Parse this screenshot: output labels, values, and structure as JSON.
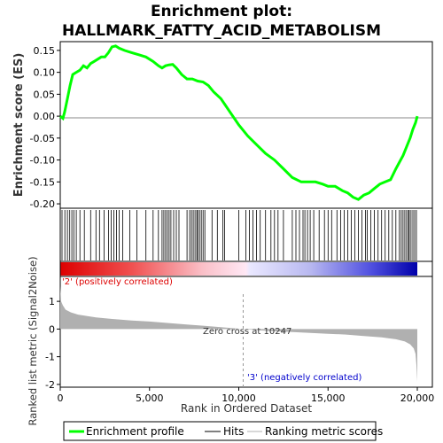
{
  "title_line1": "Enrichment plot:",
  "title_line2": "HALLMARK_FATTY_ACID_METABOLISM",
  "colors": {
    "es_curve": "#00ff00",
    "hits": "#000000",
    "metric_fill": "#b0b0b0",
    "pos_label": "#dd0000",
    "neg_label": "#0000cc",
    "zero_line": "#888888"
  },
  "chart_data": [
    {
      "type": "line",
      "name": "es-panel",
      "ylabel": "Enrichment score (ES)",
      "xlim": [
        0,
        20000
      ],
      "ylim": [
        -0.21,
        0.17
      ],
      "yticks": [
        0.15,
        0.1,
        0.05,
        0.0,
        -0.05,
        -0.1,
        -0.15,
        -0.2
      ],
      "ytick_labels": [
        "0.15",
        "0.10",
        "0.05",
        "0.00",
        "-0.05",
        "-0.10",
        "-0.15",
        "-0.20"
      ],
      "series": [
        {
          "name": "Enrichment profile",
          "x": [
            0,
            150,
            250,
            400,
            550,
            700,
            900,
            1100,
            1300,
            1500,
            1700,
            1900,
            2100,
            2300,
            2500,
            2700,
            2900,
            3100,
            3300,
            3600,
            4000,
            4400,
            4800,
            5200,
            5500,
            5700,
            5900,
            6100,
            6300,
            6500,
            6800,
            7100,
            7400,
            7700,
            8000,
            8300,
            8600,
            9000,
            9500,
            10000,
            10500,
            11000,
            11500,
            12000,
            12500,
            13000,
            13500,
            14000,
            14300,
            14700,
            15000,
            15400,
            15800,
            16100,
            16400,
            16700,
            17000,
            17300,
            17600,
            17900,
            18200,
            18500,
            18800,
            19000,
            19200,
            19400,
            19600,
            19750,
            19900,
            20000
          ],
          "y": [
            0.0,
            -0.005,
            0.01,
            0.04,
            0.07,
            0.095,
            0.1,
            0.105,
            0.115,
            0.11,
            0.12,
            0.125,
            0.13,
            0.135,
            0.135,
            0.145,
            0.158,
            0.16,
            0.155,
            0.15,
            0.145,
            0.14,
            0.135,
            0.125,
            0.115,
            0.11,
            0.115,
            0.117,
            0.118,
            0.11,
            0.095,
            0.085,
            0.085,
            0.08,
            0.078,
            0.07,
            0.055,
            0.04,
            0.01,
            -0.02,
            -0.045,
            -0.065,
            -0.085,
            -0.1,
            -0.12,
            -0.14,
            -0.15,
            -0.15,
            -0.15,
            -0.155,
            -0.16,
            -0.16,
            -0.17,
            -0.175,
            -0.185,
            -0.19,
            -0.18,
            -0.175,
            -0.165,
            -0.155,
            -0.15,
            -0.145,
            -0.12,
            -0.105,
            -0.09,
            -0.07,
            -0.05,
            -0.03,
            -0.015,
            0.0
          ]
        }
      ]
    },
    {
      "type": "scatter",
      "name": "hits-panel",
      "series": [
        {
          "name": "Hits",
          "x": [
            100,
            260,
            400,
            530,
            650,
            760,
            900,
            1100,
            1350,
            1700,
            2000,
            2200,
            2450,
            2700,
            2850,
            3000,
            3150,
            3300,
            3500,
            3900,
            4300,
            4800,
            5200,
            5500,
            5700,
            5800,
            5900,
            6000,
            6100,
            6200,
            6350,
            6500,
            6650,
            7100,
            7250,
            7350,
            7450,
            7550,
            7650,
            7700,
            7800,
            7900,
            8000,
            8100,
            8500,
            8800,
            9100,
            9200,
            10000,
            10400,
            10600,
            10800,
            11000,
            11200,
            11500,
            11800,
            12000,
            12200,
            12500,
            13000,
            13200,
            13400,
            13600,
            13700,
            13850,
            14000,
            14200,
            14500,
            14800,
            15000,
            15200,
            15500,
            15700,
            15900,
            16100,
            16300,
            16500,
            16700,
            16900,
            17100,
            17200,
            17400,
            17600,
            17800,
            18000,
            18200,
            18400,
            18600,
            18800,
            19000,
            19100,
            19200,
            19300,
            19400,
            19500,
            19550,
            19650,
            19750,
            19850,
            19950
          ]
        }
      ]
    },
    {
      "type": "area",
      "name": "ranked-metric-panel",
      "ylabel": "Ranked list metric (Signal2Noise)",
      "xlabel": "Rank in Ordered Dataset",
      "xlim": [
        0,
        20000
      ],
      "ylim": [
        -2.1,
        1.9
      ],
      "yticks": [
        1,
        0,
        -1,
        -2
      ],
      "ytick_labels": [
        "1",
        "0",
        "-1",
        "-2"
      ],
      "xticks": [
        0,
        5000,
        10000,
        15000,
        20000
      ],
      "xtick_labels": [
        "0",
        "5,000",
        "10,000",
        "15,000",
        "20,000"
      ],
      "series": [
        {
          "name": "Ranking metric scores",
          "x": [
            0,
            50,
            150,
            300,
            600,
            1000,
            2000,
            3000,
            4000,
            5000,
            6000,
            7000,
            8000,
            9000,
            10247,
            11000,
            12000,
            13000,
            14000,
            15000,
            16000,
            17000,
            18000,
            18800,
            19300,
            19600,
            19800,
            19900,
            19950,
            20000
          ],
          "y": [
            1.55,
            1.0,
            0.85,
            0.7,
            0.6,
            0.52,
            0.42,
            0.36,
            0.31,
            0.27,
            0.22,
            0.17,
            0.12,
            0.07,
            0.0,
            -0.04,
            -0.08,
            -0.11,
            -0.14,
            -0.17,
            -0.2,
            -0.25,
            -0.3,
            -0.37,
            -0.45,
            -0.55,
            -0.7,
            -0.9,
            -1.3,
            -1.9
          ]
        }
      ],
      "annotations": [
        "Zero cross at 10247",
        "'2' (positively correlated)",
        "'3' (negatively correlated)"
      ],
      "zero_cross": 10247
    }
  ],
  "legend": {
    "items": [
      "Enrichment profile",
      "Hits",
      "Ranking metric scores"
    ]
  }
}
